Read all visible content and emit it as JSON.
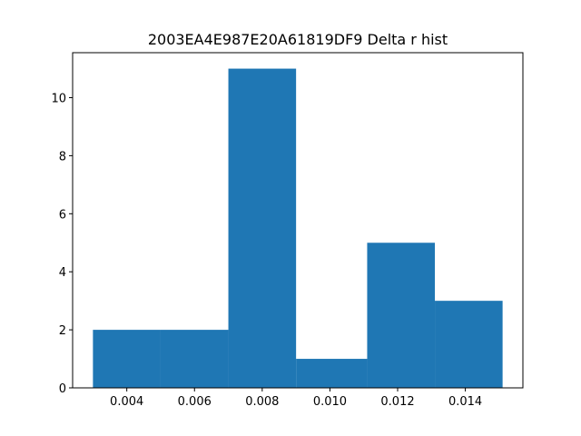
{
  "chart_data": {
    "type": "bar",
    "title": "2003EA4E987E20A61819DF9 Delta r hist",
    "xlabel": "",
    "ylabel": "",
    "bin_edges": [
      0.003,
      0.005,
      0.007,
      0.009,
      0.0111,
      0.0131,
      0.0151
    ],
    "values": [
      2,
      2,
      11,
      1,
      5,
      3
    ],
    "xlim": [
      0.0024,
      0.0157
    ],
    "ylim": [
      0,
      11.55
    ],
    "xticks": [
      0.004,
      0.006,
      0.008,
      0.01,
      0.012,
      0.014
    ],
    "xtick_labels": [
      "0.004",
      "0.006",
      "0.008",
      "0.010",
      "0.012",
      "0.014"
    ],
    "yticks": [
      0,
      2,
      4,
      6,
      8,
      10
    ],
    "ytick_labels": [
      "0",
      "2",
      "4",
      "6",
      "8",
      "10"
    ],
    "bar_color": "#1f77b4",
    "grid": false,
    "legend": "none"
  }
}
